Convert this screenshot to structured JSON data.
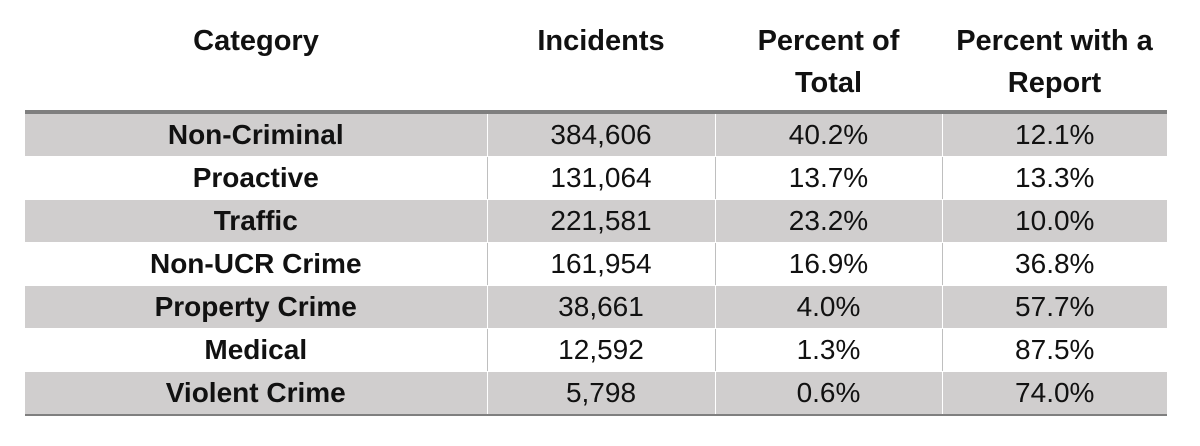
{
  "table": {
    "headers": {
      "category": "Category",
      "incidents": "Incidents",
      "percent_total": "Percent of Total",
      "percent_report": "Percent with a Report"
    },
    "rows": [
      {
        "category": "Non-Criminal",
        "incidents": "384,606",
        "percent_total": "40.2%",
        "percent_report": "12.1%"
      },
      {
        "category": "Proactive",
        "incidents": "131,064",
        "percent_total": "13.7%",
        "percent_report": "13.3%"
      },
      {
        "category": "Traffic",
        "incidents": "221,581",
        "percent_total": "23.2%",
        "percent_report": "10.0%"
      },
      {
        "category": "Non-UCR Crime",
        "incidents": "161,954",
        "percent_total": "16.9%",
        "percent_report": "36.8%"
      },
      {
        "category": "Property Crime",
        "incidents": "38,661",
        "percent_total": "4.0%",
        "percent_report": "57.7%"
      },
      {
        "category": "Medical",
        "incidents": "12,592",
        "percent_total": "1.3%",
        "percent_report": "87.5%"
      },
      {
        "category": "Violent Crime",
        "incidents": "5,798",
        "percent_total": "0.6%",
        "percent_report": "74.0%"
      }
    ],
    "shaded_row_color": "#d0cece",
    "rule_color": "#7f7f7f"
  }
}
